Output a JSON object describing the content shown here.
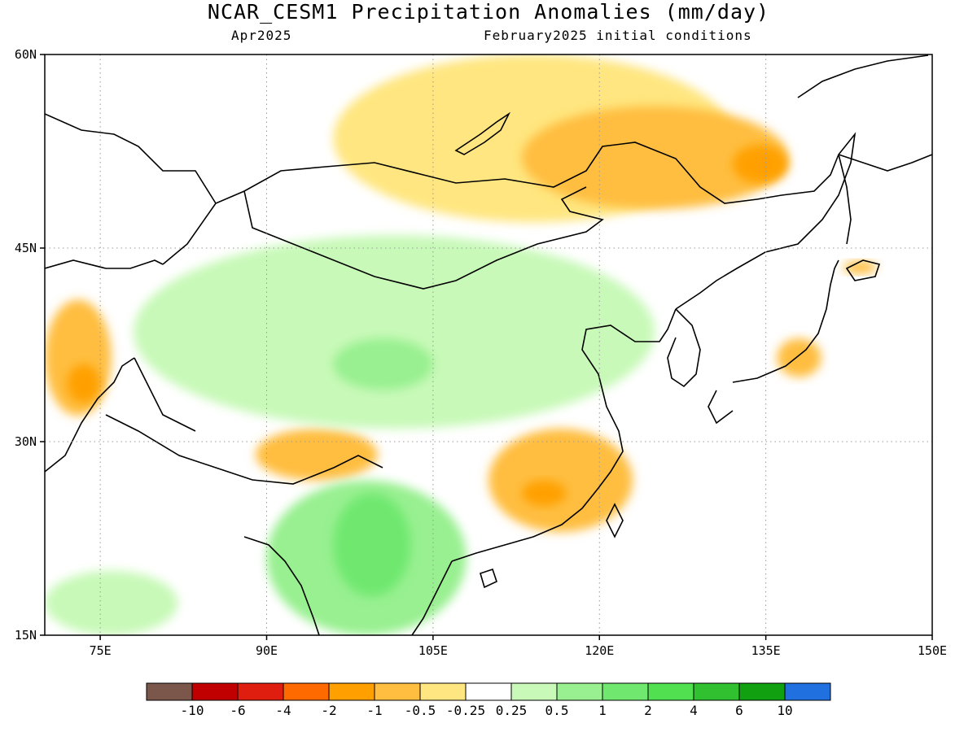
{
  "title": "NCAR_CESM1 Precipitation Anomalies (mm/day)",
  "valid_month": "Apr2025",
  "initial_conditions": "February2025 initial conditions",
  "axes": {
    "lat_ticks": [
      {
        "value": 60,
        "label": "60N"
      },
      {
        "value": 45,
        "label": "45N"
      },
      {
        "value": 30,
        "label": "30N"
      },
      {
        "value": 15,
        "label": "15N"
      }
    ],
    "lon_ticks": [
      {
        "value": 75,
        "label": "75E"
      },
      {
        "value": 90,
        "label": "90E"
      },
      {
        "value": 105,
        "label": "105E"
      },
      {
        "value": 120,
        "label": "120E"
      },
      {
        "value": 135,
        "label": "135E"
      },
      {
        "value": 150,
        "label": "150E"
      }
    ],
    "lon_range": [
      70,
      150
    ],
    "lat_range": [
      15,
      60
    ],
    "grid": true
  },
  "colorbar": {
    "colors": [
      "#7a574a",
      "#c00000",
      "#e01e10",
      "#ff6a00",
      "#ffa000",
      "#ffbe40",
      "#ffe680",
      "#ffffff",
      "#c8f9b8",
      "#98f090",
      "#70e870",
      "#50e050",
      "#30c030",
      "#10a010",
      "#2070e0"
    ],
    "labels": [
      "-10",
      "-6",
      "-4",
      "-2",
      "-1",
      "-0.5",
      "-0.25",
      "0.25",
      "0.5",
      "1",
      "2",
      "4",
      "6",
      "10"
    ]
  },
  "anomaly_regions": [
    {
      "category": "-0.5",
      "color": "#ffe680",
      "lon": [
        96,
        132
      ],
      "lat": [
        47,
        60
      ]
    },
    {
      "category": "-1",
      "color": "#ffbe40",
      "lon": [
        113,
        137
      ],
      "lat": [
        48,
        56
      ]
    },
    {
      "category": "-2",
      "color": "#ffa000",
      "lon": [
        132,
        137
      ],
      "lat": [
        50,
        53
      ]
    },
    {
      "category": "-1",
      "color": "#ffbe40",
      "lon": [
        110,
        123
      ],
      "lat": [
        23,
        31
      ]
    },
    {
      "category": "-2",
      "color": "#ffa000",
      "lon": [
        113,
        117
      ],
      "lat": [
        25,
        27
      ]
    },
    {
      "category": "-1",
      "color": "#ffbe40",
      "lon": [
        89,
        100
      ],
      "lat": [
        27,
        31
      ]
    },
    {
      "category": "-1",
      "color": "#ffbe40",
      "lon": [
        70,
        76
      ],
      "lat": [
        32,
        41
      ]
    },
    {
      "category": "-2",
      "color": "#ffa000",
      "lon": [
        72,
        75
      ],
      "lat": [
        33,
        36
      ]
    },
    {
      "category": "0.5",
      "color": "#c8f9b8",
      "lon": [
        78,
        125
      ],
      "lat": [
        31,
        46
      ]
    },
    {
      "category": "1",
      "color": "#98f090",
      "lon": [
        96,
        105
      ],
      "lat": [
        34,
        38
      ]
    },
    {
      "category": "1",
      "color": "#98f090",
      "lon": [
        90,
        108
      ],
      "lat": [
        15,
        27
      ]
    },
    {
      "category": "2",
      "color": "#70e870",
      "lon": [
        96,
        103
      ],
      "lat": [
        18,
        26
      ]
    },
    {
      "category": "0.5",
      "color": "#c8f9b8",
      "lon": [
        70,
        82
      ],
      "lat": [
        15,
        20
      ]
    },
    {
      "category": "-1",
      "color": "#ffbe40",
      "lon": [
        136,
        140
      ],
      "lat": [
        35,
        38
      ]
    },
    {
      "category": "-1",
      "color": "#ffbe40",
      "lon": [
        142,
        145
      ],
      "lat": [
        43,
        44
      ]
    }
  ]
}
